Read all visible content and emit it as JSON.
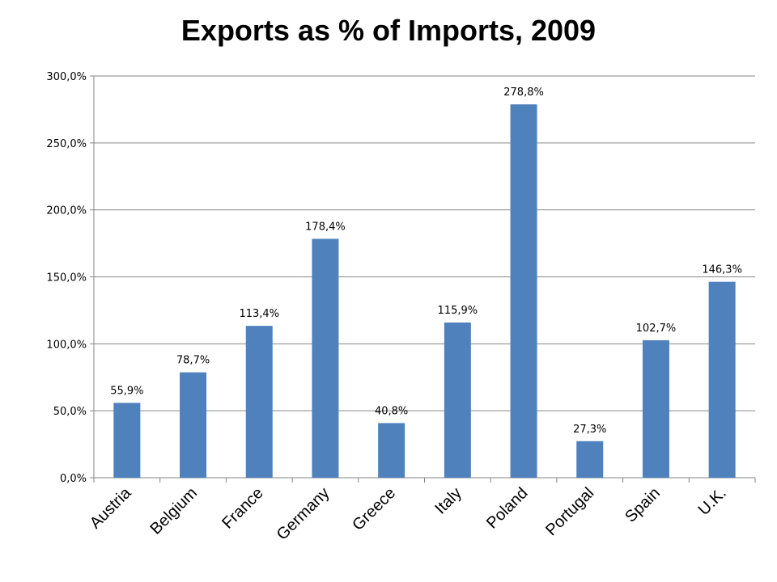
{
  "chart_data": {
    "type": "bar",
    "title": "Exports as % of Imports, 2009",
    "xlabel": "",
    "ylabel": "",
    "categories": [
      "Austria",
      "Belgium",
      "France",
      "Germany",
      "Greece",
      "Italy",
      "Poland",
      "Portugal",
      "Spain",
      "U.K."
    ],
    "values": [
      55.9,
      78.7,
      113.4,
      178.4,
      40.8,
      115.9,
      278.8,
      27.3,
      102.7,
      146.3
    ],
    "data_labels": [
      "55,9%",
      "78,7%",
      "113,4%",
      "178,4%",
      "40,8%",
      "115,9%",
      "278,8%",
      "27,3%",
      "102,7%",
      "146,3%"
    ],
    "ylim": [
      0,
      300
    ],
    "yticks": [
      0,
      50,
      100,
      150,
      200,
      250,
      300
    ],
    "ytick_labels": [
      "0,0%",
      "50,0%",
      "100,0%",
      "150,0%",
      "200,0%",
      "250,0%",
      "300,0%"
    ],
    "grid": true,
    "legend": "none",
    "bar_color": "#4F81BD",
    "grid_color": "#868686"
  }
}
